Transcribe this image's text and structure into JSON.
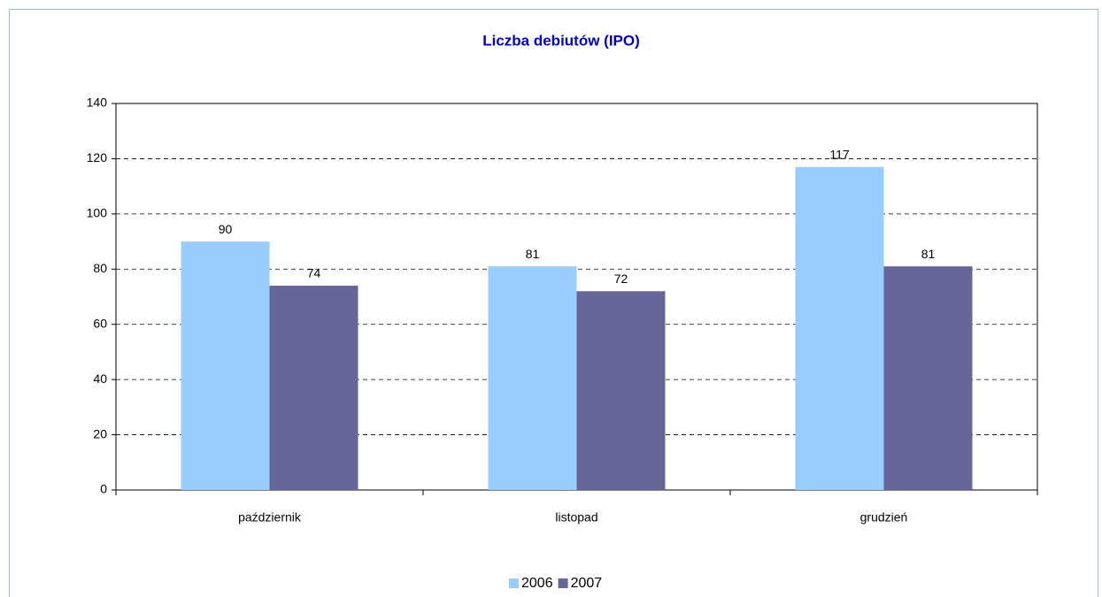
{
  "chart_data": {
    "type": "bar",
    "title": "Liczba debiutów (IPO)",
    "categories": [
      "październik",
      "listopad",
      "grudzień"
    ],
    "series": [
      {
        "name": "2006",
        "color": "#99ccff",
        "values": [
          90,
          81,
          117
        ]
      },
      {
        "name": "2007",
        "color": "#666699",
        "values": [
          74,
          72,
          81
        ]
      }
    ],
    "ylim": [
      0,
      140
    ],
    "yticks": [
      0,
      20,
      40,
      60,
      80,
      100,
      120,
      140
    ],
    "grid": true,
    "legend": "bottom"
  }
}
